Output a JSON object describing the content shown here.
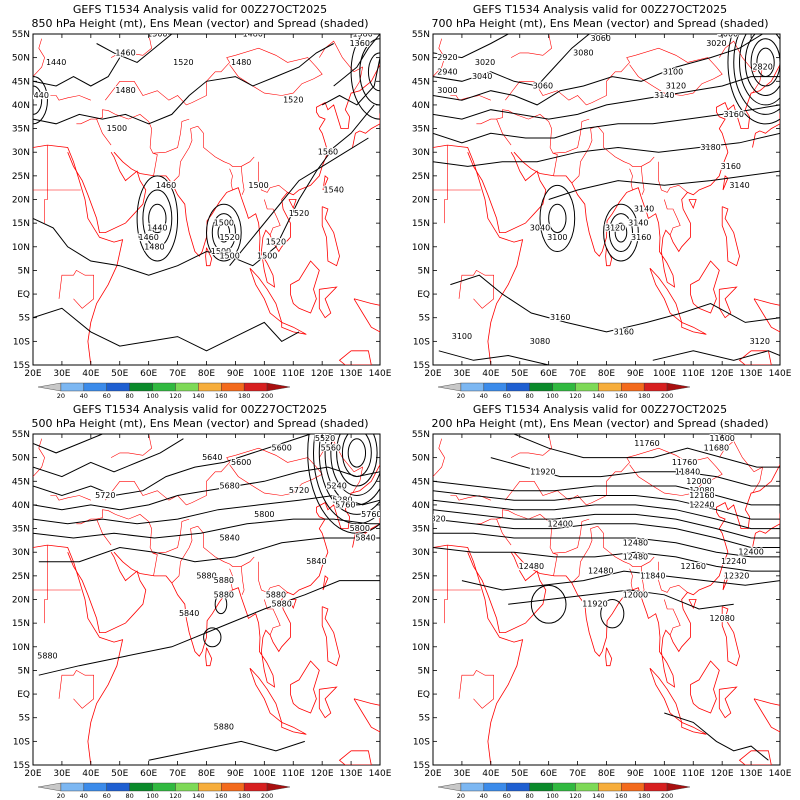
{
  "panels": [
    {
      "title_line1": "GEFS T1534 Analysis valid for 00Z27OCT2025",
      "title_line2": "850 hPa Height (mt), Ens Mean (vector) and Spread (shaded)",
      "contour_labels": [
        "1500",
        "1480",
        "1460",
        "1480",
        "1520",
        "1480",
        "1500",
        "1460",
        "1440",
        "1460",
        "1480",
        "1500",
        "1520",
        "1500",
        "1520",
        "1500",
        "1520",
        "1500",
        "1500",
        "1520",
        "1540",
        "1560",
        "1360",
        "1380",
        "1440",
        "1440"
      ]
    },
    {
      "title_line1": "GEFS T1534 Analysis valid for 00Z27OCT2025",
      "title_line2": "700 hPa Height (mt), Ens Mean (vector) and Spread (shaded)",
      "contour_labels": [
        "3060",
        "3020",
        "3000",
        "2840",
        "2820",
        "2920",
        "2940",
        "3000",
        "3020",
        "3040",
        "3060",
        "3080",
        "3100",
        "3120",
        "3140",
        "3160",
        "3180",
        "3160",
        "3140",
        "3100",
        "3120",
        "3140",
        "3160",
        "3140",
        "3160",
        "3160",
        "3100",
        "3120",
        "3080",
        "3040"
      ]
    },
    {
      "title_line1": "GEFS T1534 Analysis valid for 00Z27OCT2025",
      "title_line2": "500 hPa Height (mt), Ens Mean (vector) and Spread (shaded)",
      "contour_labels": [
        "5520",
        "5560",
        "5640",
        "5600",
        "5240",
        "5280",
        "5600",
        "5680",
        "5720",
        "5760",
        "5800",
        "5840",
        "5880",
        "5840",
        "5880",
        "5880",
        "5840",
        "5880",
        "5880",
        "5880",
        "5880",
        "5760",
        "5800",
        "5840",
        "5720"
      ]
    },
    {
      "title_line1": "GEFS T1534 Analysis valid for 00Z27OCT2025",
      "title_line2": "200 hPa Height (mt), Ens Mean (vector) and Spread (shaded)",
      "contour_labels": [
        "11760",
        "11600",
        "11680",
        "11760",
        "11840",
        "11920",
        "12000",
        "12080",
        "12160",
        "12240",
        "12320",
        "12400",
        "12480",
        "12480",
        "12480",
        "12480",
        "11840",
        "11920",
        "12000",
        "12080",
        "12160",
        "12240",
        "12320",
        "12400"
      ]
    }
  ],
  "axes": {
    "x_ticks": [
      "20E",
      "30E",
      "40E",
      "50E",
      "60E",
      "70E",
      "80E",
      "90E",
      "100E",
      "110E",
      "120E",
      "130E",
      "140E"
    ],
    "y_ticks": [
      "55N",
      "50N",
      "45N",
      "40N",
      "35N",
      "30N",
      "25N",
      "20N",
      "15N",
      "10N",
      "5N",
      "EQ",
      "5S",
      "10S",
      "15S"
    ],
    "lon_range": [
      20,
      140
    ],
    "lat_range": [
      -15,
      55
    ]
  },
  "colorbar": {
    "labels": [
      "20",
      "40",
      "60",
      "80",
      "100",
      "120",
      "140",
      "160",
      "180",
      "200"
    ],
    "colors": [
      "#c8c8c8",
      "#7cb7f2",
      "#3b8bea",
      "#1e5fd1",
      "#0a8a2a",
      "#31b940",
      "#7ed957",
      "#f6ad3b",
      "#f36a1c",
      "#d71f1f",
      "#a90f0f"
    ]
  },
  "style": {
    "coast_color": "#ff0000",
    "contour_color": "#000000"
  }
}
